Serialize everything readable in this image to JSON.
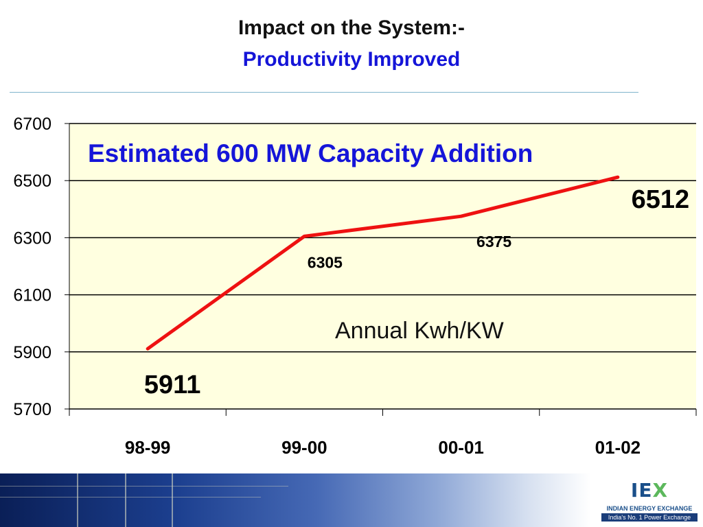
{
  "slide": {
    "title_line1": "Impact on the System:-",
    "title_line2": "Productivity  Improved",
    "title_line2_color": "#1515d8"
  },
  "chart_data": {
    "type": "line",
    "categories": [
      "98-99",
      "99-00",
      "00-01",
      "01-02"
    ],
    "series": [
      {
        "values": [
          5911,
          6305,
          6375,
          6512
        ],
        "color": "#ee1111"
      }
    ],
    "data_labels": [
      "5911",
      "6305",
      "6375",
      "6512"
    ],
    "ylim": [
      5700,
      6700
    ],
    "yticks": [
      "5700",
      "5900",
      "6100",
      "6300",
      "6500",
      "6700"
    ],
    "grid": true,
    "plot_background": "#ffffe0",
    "annotations": {
      "headline": "Estimated 600 MW Capacity Addition",
      "headline_color": "#1515d8",
      "series_label": "Annual Kwh/KW"
    }
  },
  "footer": {
    "logo_mark": "IEX",
    "logo_name": "INDIAN ENERGY EXCHANGE",
    "logo_tagline": "India's No. 1 Power Exchange",
    "brand_color": "#1a4f8a",
    "accent_color": "#5cb85c"
  }
}
